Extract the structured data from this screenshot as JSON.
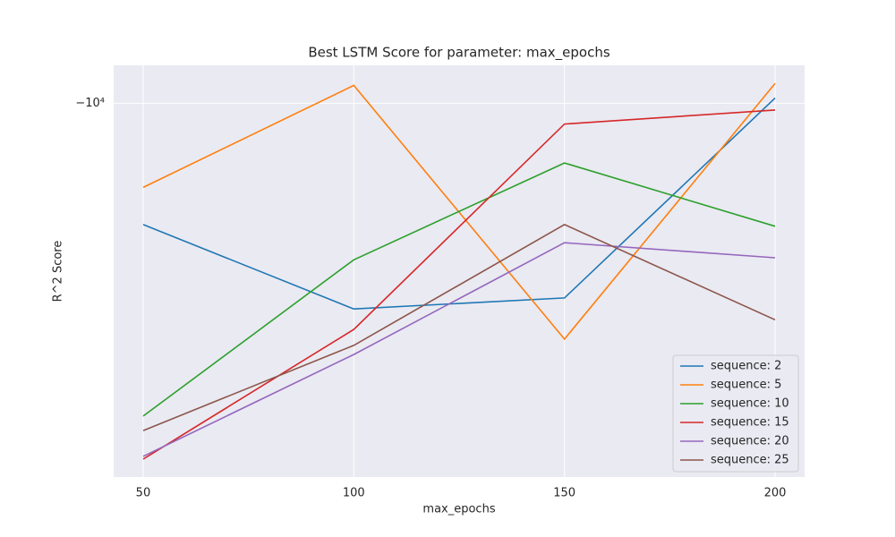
{
  "chart_data": {
    "type": "line",
    "title": "Best LSTM Score for parameter: max_epochs",
    "x_label": "max_epochs",
    "y_label": "R^2 Score",
    "x": [
      50,
      100,
      150,
      200
    ],
    "xlim": [
      43,
      207
    ],
    "xticks": [
      50,
      100,
      150,
      200
    ],
    "y_scale": "symlog",
    "ylim": [
      -90000,
      -8000
    ],
    "yticks": [
      {
        "value": -10000,
        "label": "−10⁴"
      }
    ],
    "grid": true,
    "legend": "lower right",
    "series": [
      {
        "name": "sequence: 2",
        "color": "#1f77b4",
        "values": [
          -20400,
          -33500,
          -31400,
          -9700
        ]
      },
      {
        "name": "sequence: 5",
        "color": "#ff7f0e",
        "values": [
          -16400,
          -9000,
          -40000,
          -8900
        ]
      },
      {
        "name": "sequence: 10",
        "color": "#2ca02c",
        "values": [
          -62900,
          -25100,
          -14200,
          -20600
        ]
      },
      {
        "name": "sequence: 15",
        "color": "#d62728",
        "values": [
          -81000,
          -37800,
          -11300,
          -10400
        ]
      },
      {
        "name": "sequence: 20",
        "color": "#9467bd",
        "values": [
          -79700,
          -43800,
          -22700,
          -24800
        ]
      },
      {
        "name": "sequence: 25",
        "color": "#8c564b",
        "values": [
          -68500,
          -41500,
          -20400,
          -35700
        ]
      }
    ]
  }
}
